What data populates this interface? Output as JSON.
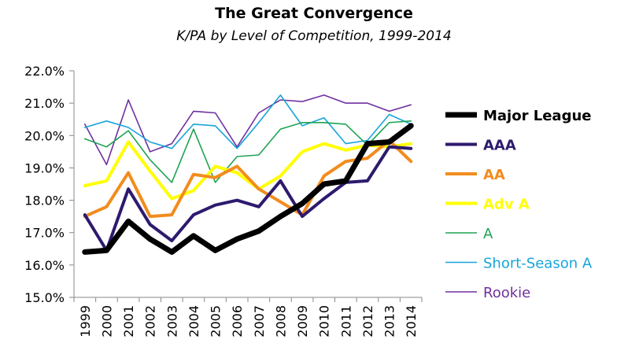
{
  "chart_data": {
    "type": "line",
    "title": "The Great Convergence",
    "subtitle": "K/PA by Level of Competition, 1999-2014",
    "xlabel": "",
    "ylabel": "",
    "x": [
      "1999",
      "2000",
      "2001",
      "2002",
      "2003",
      "2004",
      "2005",
      "2006",
      "2007",
      "2008",
      "2009",
      "2010",
      "2011",
      "2012",
      "2013",
      "2014"
    ],
    "ylim": [
      15.0,
      22.0
    ],
    "y_ticks": [
      "15.0%",
      "16.0%",
      "17.0%",
      "18.0%",
      "19.0%",
      "20.0%",
      "21.0%",
      "22.0%"
    ],
    "grid": false,
    "legend_position": "right",
    "series": [
      {
        "name": "Major League",
        "color": "#000000",
        "width": 7,
        "bold": true,
        "values": [
          16.4,
          16.45,
          17.35,
          16.8,
          16.4,
          16.9,
          16.45,
          16.8,
          17.05,
          17.5,
          17.9,
          18.5,
          18.6,
          19.75,
          19.8,
          20.3
        ]
      },
      {
        "name": "AAA",
        "color": "#2e1a6e",
        "width": 4,
        "bold": true,
        "values": [
          17.55,
          16.45,
          18.35,
          17.25,
          16.75,
          17.55,
          17.85,
          18.0,
          17.8,
          18.6,
          17.5,
          18.05,
          18.55,
          18.6,
          19.65,
          19.6
        ]
      },
      {
        "name": "AA",
        "color": "#f28c1e",
        "width": 4,
        "bold": true,
        "values": [
          17.5,
          17.8,
          18.85,
          17.5,
          17.55,
          18.8,
          18.7,
          19.05,
          18.35,
          17.95,
          17.55,
          18.75,
          19.2,
          19.3,
          19.85,
          19.2
        ]
      },
      {
        "name": "Adv A",
        "color": "#ffff00",
        "width": 4,
        "bold": true,
        "values": [
          18.45,
          18.6,
          19.8,
          18.9,
          18.05,
          18.3,
          19.05,
          18.85,
          18.35,
          18.75,
          19.5,
          19.75,
          19.55,
          19.7,
          19.65,
          19.75
        ]
      },
      {
        "name": "A",
        "color": "#1fa354",
        "width": 1.6,
        "bold": false,
        "values": [
          19.9,
          19.65,
          20.15,
          19.25,
          18.55,
          20.2,
          18.55,
          19.35,
          19.4,
          20.2,
          20.4,
          20.4,
          20.35,
          19.7,
          20.4,
          20.45
        ]
      },
      {
        "name": "Short-Season A",
        "color": "#18a4db",
        "width": 1.6,
        "bold": false,
        "values": [
          20.25,
          20.45,
          20.25,
          19.8,
          19.6,
          20.35,
          20.3,
          19.6,
          20.4,
          21.25,
          20.3,
          20.55,
          19.75,
          19.85,
          20.65,
          20.35
        ]
      },
      {
        "name": "Rookie",
        "color": "#7030a0",
        "width": 1.6,
        "bold": false,
        "values": [
          20.35,
          19.1,
          21.1,
          19.5,
          19.75,
          20.75,
          20.7,
          19.65,
          20.7,
          21.1,
          21.05,
          21.25,
          21.0,
          21.0,
          20.75,
          20.95
        ]
      }
    ]
  }
}
